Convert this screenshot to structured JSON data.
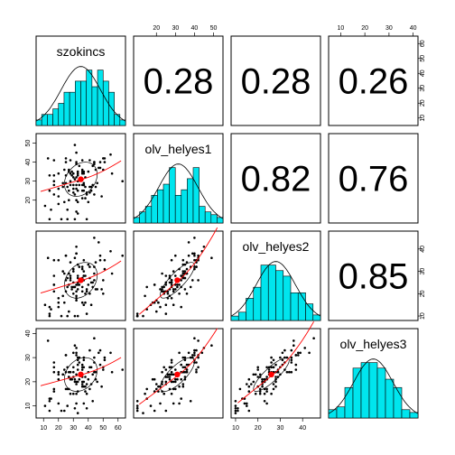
{
  "chart_data": {
    "type": "scatter",
    "variables": [
      "szokincs",
      "olv_helyes1",
      "olv_helyes2",
      "olv_helyes3"
    ],
    "correlations": [
      [
        "",
        "0.28",
        "0.28",
        "0.26"
      ],
      [
        "",
        "",
        "0.82",
        "0.76"
      ],
      [
        "",
        "",
        "",
        "0.85"
      ],
      [
        "",
        "",
        "",
        ""
      ]
    ],
    "ranges": [
      [
        5,
        65
      ],
      [
        8,
        55
      ],
      [
        8,
        48
      ],
      [
        5,
        42
      ]
    ],
    "ticks": {
      "szokincs": [
        10,
        20,
        30,
        40,
        50,
        60
      ],
      "olv_helyes1": [
        20,
        30,
        40,
        50
      ],
      "olv_helyes2": [
        10,
        20,
        30,
        40
      ],
      "olv_helyes3": [
        10,
        20,
        30,
        40
      ]
    },
    "means": [
      35,
      31,
      26,
      23
    ],
    "sds": [
      11,
      9,
      8,
      7
    ],
    "histograms": [
      [
        1.0,
        2.0,
        2.0,
        3.0,
        4.0,
        6.0,
        6.0,
        8.0,
        8.0,
        10.0,
        7.0,
        10.0,
        8.0,
        6.0,
        2.0,
        1.0
      ],
      [
        1.0,
        2.0,
        3.0,
        5.0,
        6.0,
        7.0,
        10.0,
        5.0,
        6.0,
        8.0,
        10.0,
        3.0,
        2.0,
        1.5,
        1.0
      ],
      [
        0.8,
        1.5,
        4.0,
        6.0,
        10.0,
        10.0,
        9.0,
        8.0,
        5.0,
        5.0,
        3.0,
        1.0
      ],
      [
        1.5,
        2.0,
        5.5,
        9.0,
        10.0,
        10.0,
        9.0,
        7.0,
        5.5,
        1.5,
        1.0
      ]
    ]
  }
}
